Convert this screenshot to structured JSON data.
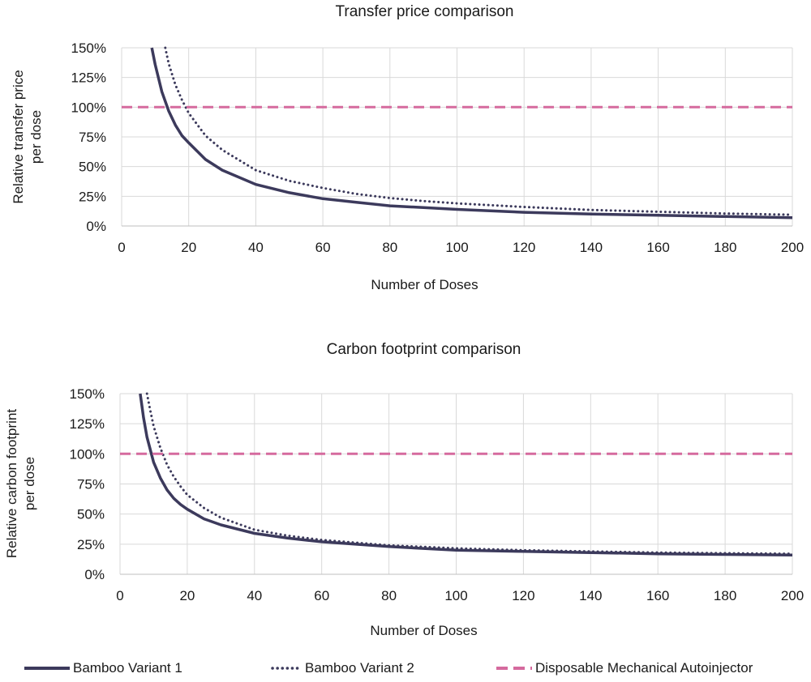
{
  "chart_data": [
    {
      "type": "line",
      "title": "Transfer price comparison",
      "xlabel": "Number of Doses",
      "ylabel": [
        "Relative transfer price",
        "per dose"
      ],
      "xlim": [
        0,
        200
      ],
      "ylim": [
        0,
        1.5
      ],
      "x_ticks": [
        "0",
        "20",
        "40",
        "60",
        "80",
        "100",
        "120",
        "140",
        "160",
        "180",
        "200"
      ],
      "y_ticks": [
        "0%",
        "25%",
        "50%",
        "75%",
        "100%",
        "125%",
        "150%"
      ],
      "grid": true,
      "series": [
        {
          "name": "Bamboo Variant 1",
          "style": "solid",
          "color": "#3c3a5c",
          "x": [
            9,
            10,
            12,
            14,
            16,
            18,
            20,
            25,
            30,
            40,
            50,
            60,
            70,
            80,
            90,
            100,
            120,
            140,
            160,
            180,
            200
          ],
          "y": [
            1.5,
            1.36,
            1.13,
            0.97,
            0.85,
            0.76,
            0.7,
            0.56,
            0.47,
            0.35,
            0.28,
            0.23,
            0.2,
            0.17,
            0.155,
            0.14,
            0.115,
            0.1,
            0.09,
            0.08,
            0.07
          ]
        },
        {
          "name": "Bamboo Variant 2",
          "style": "dotted",
          "color": "#3c3a5c",
          "x": [
            13,
            14,
            16,
            18,
            20,
            25,
            30,
            40,
            50,
            60,
            70,
            80,
            90,
            100,
            120,
            140,
            160,
            180,
            200
          ],
          "y": [
            1.5,
            1.37,
            1.19,
            1.06,
            0.95,
            0.76,
            0.64,
            0.47,
            0.38,
            0.32,
            0.27,
            0.235,
            0.21,
            0.19,
            0.16,
            0.135,
            0.12,
            0.105,
            0.095
          ]
        },
        {
          "name": "Disposable Mechanical Autoinjector",
          "style": "dashed",
          "color": "#d56a9e",
          "x": [
            0,
            200
          ],
          "y": [
            1.0,
            1.0
          ]
        }
      ]
    },
    {
      "type": "line",
      "title": "Carbon footprint comparison",
      "xlabel": "Number of Doses",
      "ylabel": [
        "Relative carbon footprint",
        "per dose"
      ],
      "xlim": [
        0,
        200
      ],
      "ylim": [
        0,
        1.5
      ],
      "x_ticks": [
        "0",
        "20",
        "40",
        "60",
        "80",
        "100",
        "120",
        "140",
        "160",
        "180",
        "200"
      ],
      "y_ticks": [
        "0%",
        "25%",
        "50%",
        "75%",
        "100%",
        "125%",
        "150%"
      ],
      "grid": true,
      "series": [
        {
          "name": "Bamboo Variant 1",
          "style": "solid",
          "color": "#3c3a5c",
          "x": [
            6,
            7,
            8,
            10,
            12,
            14,
            16,
            18,
            20,
            25,
            30,
            40,
            50,
            60,
            80,
            100,
            120,
            140,
            160,
            180,
            200
          ],
          "y": [
            1.5,
            1.3,
            1.14,
            0.93,
            0.8,
            0.7,
            0.63,
            0.58,
            0.54,
            0.46,
            0.41,
            0.34,
            0.3,
            0.27,
            0.23,
            0.2,
            0.19,
            0.18,
            0.17,
            0.165,
            0.16
          ]
        },
        {
          "name": "Bamboo Variant 2",
          "style": "dotted",
          "color": "#3c3a5c",
          "x": [
            8,
            9,
            10,
            12,
            14,
            16,
            18,
            20,
            25,
            30,
            40,
            50,
            60,
            80,
            100,
            120,
            140,
            160,
            180,
            200
          ],
          "y": [
            1.5,
            1.36,
            1.23,
            1.05,
            0.91,
            0.81,
            0.73,
            0.66,
            0.55,
            0.47,
            0.37,
            0.32,
            0.285,
            0.24,
            0.215,
            0.2,
            0.19,
            0.18,
            0.175,
            0.17
          ]
        },
        {
          "name": "Disposable Mechanical Autoinjector",
          "style": "dashed",
          "color": "#d56a9e",
          "x": [
            0,
            200
          ],
          "y": [
            1.0,
            1.0
          ]
        }
      ]
    }
  ],
  "legend": {
    "placement": "bottom",
    "items": [
      {
        "label": "Bamboo Variant 1",
        "style": "solid",
        "color": "#3c3a5c"
      },
      {
        "label": "Bamboo Variant 2",
        "style": "dotted",
        "color": "#3c3a5c"
      },
      {
        "label": "Disposable Mechanical Autoinjector",
        "style": "dashed",
        "color": "#d56a9e"
      }
    ]
  }
}
